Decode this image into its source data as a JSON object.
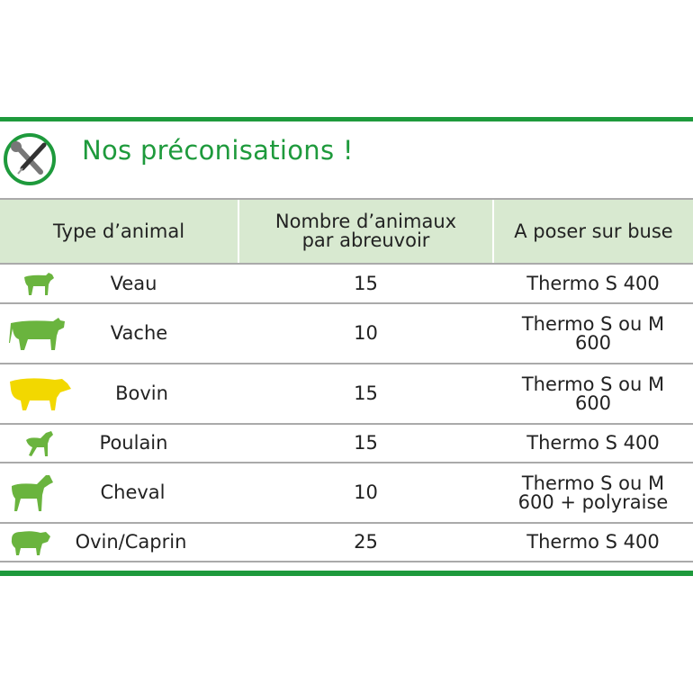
{
  "title": "Nos préconisations !",
  "icon": "tools-wrench-screwdriver-icon",
  "colors": {
    "brand_green": "#1e9a3c",
    "header_bg": "#d8e9d0",
    "animal_green": "#6ab43e",
    "animal_yellow": "#f2d800"
  },
  "headers": [
    "Type d’animal",
    "Nombre d’animaux par abreuvoir",
    "A poser sur buse"
  ],
  "header_lines": {
    "col2_line1": "Nombre d’animaux",
    "col2_line2": "par abreuvoir"
  },
  "rows": [
    {
      "animal": "Veau",
      "icon": "calf-icon",
      "count": "15",
      "buse1": "Thermo S 400",
      "buse2": ""
    },
    {
      "animal": "Vache",
      "icon": "cow-icon",
      "count": "10",
      "buse1": "Thermo S ou M",
      "buse2": "600"
    },
    {
      "animal": "Bovin",
      "icon": "bull-icon",
      "count": "15",
      "buse1": "Thermo S ou M",
      "buse2": "600"
    },
    {
      "animal": "Poulain",
      "icon": "foal-icon",
      "count": "15",
      "buse1": "Thermo S 400",
      "buse2": ""
    },
    {
      "animal": "Cheval",
      "icon": "horse-icon",
      "count": "10",
      "buse1": "Thermo S ou M",
      "buse2": "600  + polyraise"
    },
    {
      "animal": "Ovin/Caprin",
      "icon": "sheep-icon",
      "count": "25",
      "buse1": "Thermo S 400",
      "buse2": ""
    }
  ]
}
